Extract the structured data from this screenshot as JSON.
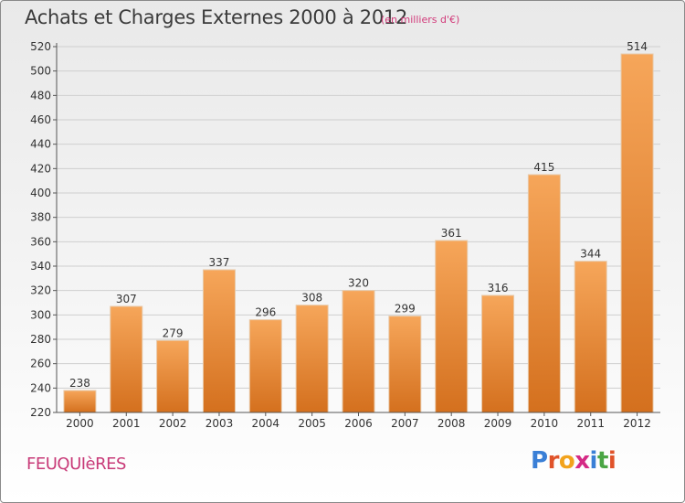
{
  "header": {
    "title": "Achats et Charges Externes 2000 à 2012",
    "subtitle": "(en milliers d'€)"
  },
  "footer": {
    "commune": "FEUQUIèRES",
    "logo_letters": [
      {
        "ch": "P",
        "color": "#3a7fd6"
      },
      {
        "ch": "r",
        "color": "#e0532a"
      },
      {
        "ch": "o",
        "color": "#f2a31c"
      },
      {
        "ch": "x",
        "color": "#d42a85"
      },
      {
        "ch": "i",
        "color": "#3a7fd6"
      },
      {
        "ch": "t",
        "color": "#4aa544"
      },
      {
        "ch": "i",
        "color": "#e0532a"
      }
    ]
  },
  "chart_data": {
    "type": "bar",
    "title": "Achats et Charges Externes 2000 à 2012",
    "subtitle": "(en milliers d'€)",
    "categories": [
      "2000",
      "2001",
      "2002",
      "2003",
      "2004",
      "2005",
      "2006",
      "2007",
      "2008",
      "2009",
      "2010",
      "2011",
      "2012"
    ],
    "values": [
      238,
      307,
      279,
      337,
      296,
      308,
      320,
      299,
      361,
      316,
      415,
      344,
      514
    ],
    "ylim": [
      220,
      520
    ],
    "yticks": [
      220,
      240,
      260,
      280,
      300,
      320,
      340,
      360,
      380,
      400,
      420,
      440,
      460,
      480,
      500,
      520
    ],
    "grid": true,
    "legend": "none",
    "colors": {
      "bar_light": "#f6a65a",
      "bar_dark": "#d4701e",
      "grid": "#cfcfcf",
      "axis": "#555555",
      "label": "#333333"
    }
  }
}
